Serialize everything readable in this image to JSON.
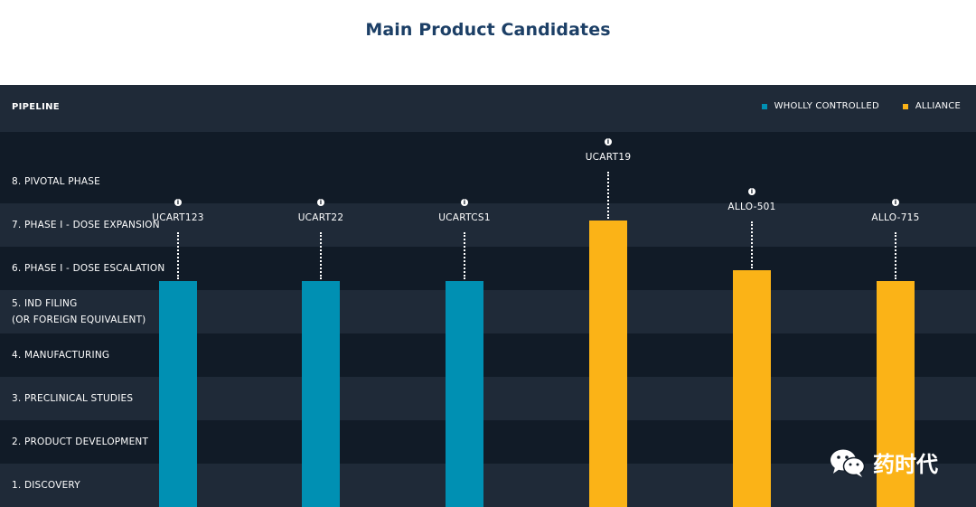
{
  "title": "Main Product Candidates",
  "header": {
    "label": "PIPELINE",
    "legend": [
      {
        "label": "WHOLLY CONTROLLED",
        "color": "#0090b3"
      },
      {
        "label": "ALLIANCE",
        "color": "#fbb317"
      }
    ]
  },
  "chart_data": {
    "type": "bar",
    "title": "Main Product Candidates",
    "stages": [
      "1. DISCOVERY",
      "2. PRODUCT DEVELOPMENT",
      "3. PRECLINICAL STUDIES",
      "4. MANUFACTURING",
      [
        "5. IND FILING",
        "(OR FOREIGN EQUIVALENT)"
      ],
      "6. PHASE I - DOSE ESCALATION",
      "7. PHASE I - DOSE EXPANSION",
      "8. PIVOTAL PHASE"
    ],
    "categories": [
      "UCART123",
      "UCART22",
      "UCARTCS1",
      "UCART19",
      "ALLO-501",
      "ALLO-715"
    ],
    "values": [
      5.2,
      5.2,
      5.2,
      6.6,
      5.45,
      5.2
    ],
    "groups": [
      "WHOLLY CONTROLLED",
      "WHOLLY CONTROLLED",
      "WHOLLY CONTROLLED",
      "ALLIANCE",
      "ALLIANCE",
      "ALLIANCE"
    ],
    "colors": {
      "WHOLLY CONTROLLED": "#0090b3",
      "ALLIANCE": "#fbb317"
    },
    "ylim": [
      0,
      8
    ]
  },
  "watermark": "药时代"
}
